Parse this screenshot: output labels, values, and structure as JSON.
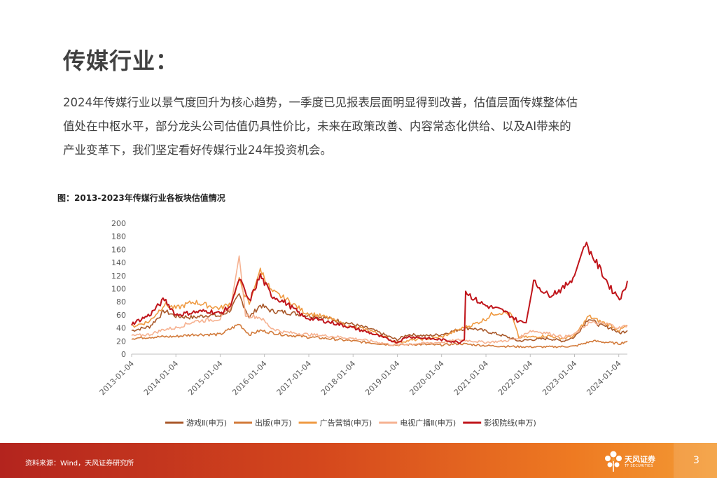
{
  "page": {
    "title": "传媒行业：",
    "paragraph": [
      "2024年传媒行业以景气度回升为核心趋势，一季度已见报表层面明显得到改善，估值层面传媒整体估",
      "值处在中枢水平，部分龙头公司估值仍具性价比，未来在政策改善、内容常态化供给、以及AI带来的",
      "产业变革下，我们坚定看好传媒行业24年投资机会。"
    ],
    "figure_title": "图：2013-2023年传媒行业各板块估值情况",
    "source": "资料来源：Wind，天风证券研究所",
    "logo_text": "天风证券",
    "logo_subtext": "TF SECURITIES",
    "page_number": "3"
  },
  "colors": {
    "footer_start": "#b3241e",
    "footer_end": "#f39b35"
  },
  "chart_data": {
    "type": "line",
    "title": "图：2013-2023年传媒行业各板块估值情况",
    "xlabel": "",
    "ylabel": "",
    "ylim": [
      0,
      200
    ],
    "yticks": [
      0,
      20,
      40,
      60,
      80,
      100,
      120,
      140,
      160,
      180,
      200
    ],
    "xlim": [
      "2013-01-04",
      "2024-03-15"
    ],
    "xticks": [
      "2013-01-04",
      "2014-01-04",
      "2015-01-04",
      "2016-01-04",
      "2017-01-04",
      "2018-01-04",
      "2019-01-04",
      "2020-01-04",
      "2021-01-04",
      "2022-01-04",
      "2023-01-04",
      "2024-01-04"
    ],
    "grid": false,
    "legend_position": "bottom",
    "series": [
      {
        "name": "游戏Ⅱ(申万)",
        "color": "#a8582a",
        "points": [
          [
            "2013-01-04",
            36
          ],
          [
            "2013-06-01",
            42
          ],
          [
            "2013-10-01",
            66
          ],
          [
            "2014-01-04",
            58
          ],
          [
            "2014-06-01",
            56
          ],
          [
            "2014-10-01",
            60
          ],
          [
            "2015-01-04",
            58
          ],
          [
            "2015-04-01",
            68
          ],
          [
            "2015-06-10",
            90
          ],
          [
            "2015-09-01",
            56
          ],
          [
            "2015-12-01",
            75
          ],
          [
            "2016-03-01",
            66
          ],
          [
            "2016-07-01",
            64
          ],
          [
            "2016-12-01",
            60
          ],
          [
            "2017-06-01",
            55
          ],
          [
            "2017-12-01",
            47
          ],
          [
            "2018-06-01",
            38
          ],
          [
            "2018-12-01",
            24
          ],
          [
            "2019-01-04",
            22
          ],
          [
            "2019-04-01",
            30
          ],
          [
            "2019-09-01",
            28
          ],
          [
            "2020-01-04",
            30
          ],
          [
            "2020-06-01",
            38
          ],
          [
            "2020-09-01",
            40
          ],
          [
            "2021-01-04",
            35
          ],
          [
            "2021-06-01",
            28
          ],
          [
            "2021-10-01",
            20
          ],
          [
            "2022-01-04",
            22
          ],
          [
            "2022-06-01",
            24
          ],
          [
            "2022-10-01",
            20
          ],
          [
            "2023-01-04",
            26
          ],
          [
            "2023-05-01",
            55
          ],
          [
            "2023-08-01",
            44
          ],
          [
            "2023-11-01",
            40
          ],
          [
            "2024-01-10",
            32
          ],
          [
            "2024-03-15",
            36
          ]
        ]
      },
      {
        "name": "出版(申万)",
        "color": "#d27a3a",
        "points": [
          [
            "2013-01-04",
            24
          ],
          [
            "2013-06-01",
            26
          ],
          [
            "2014-01-04",
            27
          ],
          [
            "2014-06-01",
            30
          ],
          [
            "2015-01-04",
            30
          ],
          [
            "2015-06-10",
            46
          ],
          [
            "2015-09-01",
            30
          ],
          [
            "2015-12-01",
            36
          ],
          [
            "2016-06-01",
            30
          ],
          [
            "2017-01-04",
            26
          ],
          [
            "2017-06-01",
            24
          ],
          [
            "2018-01-04",
            20
          ],
          [
            "2018-10-01",
            15
          ],
          [
            "2019-01-04",
            14
          ],
          [
            "2019-06-01",
            15
          ],
          [
            "2020-01-04",
            14
          ],
          [
            "2020-06-01",
            16
          ],
          [
            "2021-01-04",
            13
          ],
          [
            "2021-06-01",
            12
          ],
          [
            "2022-01-04",
            11
          ],
          [
            "2022-06-01",
            11
          ],
          [
            "2023-01-04",
            12
          ],
          [
            "2023-06-01",
            20
          ],
          [
            "2023-10-01",
            18
          ],
          [
            "2024-01-10",
            16
          ],
          [
            "2024-03-15",
            20
          ]
        ]
      },
      {
        "name": "广告营销(申万)",
        "color": "#ef9a42",
        "points": [
          [
            "2013-01-04",
            42
          ],
          [
            "2013-06-01",
            50
          ],
          [
            "2013-10-01",
            76
          ],
          [
            "2014-01-04",
            70
          ],
          [
            "2014-06-01",
            80
          ],
          [
            "2014-10-01",
            74
          ],
          [
            "2015-01-04",
            70
          ],
          [
            "2015-04-01",
            78
          ],
          [
            "2015-06-10",
            112
          ],
          [
            "2015-09-01",
            76
          ],
          [
            "2015-12-01",
            130
          ],
          [
            "2016-03-01",
            96
          ],
          [
            "2016-07-01",
            84
          ],
          [
            "2016-12-01",
            64
          ],
          [
            "2017-06-01",
            56
          ],
          [
            "2017-12-01",
            42
          ],
          [
            "2018-06-01",
            36
          ],
          [
            "2018-12-01",
            20
          ],
          [
            "2019-01-04",
            18
          ],
          [
            "2019-06-01",
            22
          ],
          [
            "2020-01-04",
            26
          ],
          [
            "2020-06-01",
            38
          ],
          [
            "2020-10-01",
            46
          ],
          [
            "2021-01-04",
            54
          ],
          [
            "2021-03-01",
            62
          ],
          [
            "2021-06-01",
            64
          ],
          [
            "2021-08-01",
            60
          ],
          [
            "2021-10-01",
            26
          ],
          [
            "2022-01-04",
            26
          ],
          [
            "2022-06-01",
            28
          ],
          [
            "2022-10-01",
            24
          ],
          [
            "2023-01-04",
            28
          ],
          [
            "2023-05-01",
            58
          ],
          [
            "2023-08-01",
            50
          ],
          [
            "2023-11-01",
            44
          ],
          [
            "2024-01-10",
            36
          ],
          [
            "2024-03-15",
            44
          ]
        ]
      },
      {
        "name": "电视广播Ⅱ(申万)",
        "color": "#f6b291",
        "points": [
          [
            "2013-01-04",
            28
          ],
          [
            "2013-06-01",
            30
          ],
          [
            "2013-10-01",
            38
          ],
          [
            "2014-01-04",
            40
          ],
          [
            "2014-06-01",
            50
          ],
          [
            "2015-01-04",
            54
          ],
          [
            "2015-04-01",
            72
          ],
          [
            "2015-06-10",
            150
          ],
          [
            "2015-08-01",
            60
          ],
          [
            "2015-12-01",
            56
          ],
          [
            "2016-03-01",
            40
          ],
          [
            "2016-06-01",
            34
          ],
          [
            "2017-01-04",
            30
          ],
          [
            "2017-06-01",
            28
          ],
          [
            "2018-01-04",
            24
          ],
          [
            "2018-06-01",
            20
          ],
          [
            "2018-12-01",
            14
          ],
          [
            "2019-01-04",
            14
          ],
          [
            "2019-06-01",
            16
          ],
          [
            "2020-01-04",
            18
          ],
          [
            "2020-06-01",
            22
          ],
          [
            "2021-01-04",
            18
          ],
          [
            "2021-06-01",
            20
          ],
          [
            "2021-10-01",
            24
          ],
          [
            "2022-01-04",
            36
          ],
          [
            "2022-06-01",
            32
          ],
          [
            "2022-10-01",
            26
          ],
          [
            "2023-01-04",
            30
          ],
          [
            "2023-05-01",
            48
          ],
          [
            "2023-10-01",
            46
          ],
          [
            "2024-01-10",
            40
          ],
          [
            "2024-03-15",
            44
          ]
        ]
      },
      {
        "name": "影视院线(申万)",
        "color": "#c0151b",
        "points": [
          [
            "2013-01-04",
            46
          ],
          [
            "2013-06-01",
            60
          ],
          [
            "2013-10-01",
            84
          ],
          [
            "2014-01-04",
            60
          ],
          [
            "2014-06-01",
            64
          ],
          [
            "2014-10-01",
            66
          ],
          [
            "2015-01-04",
            62
          ],
          [
            "2015-04-01",
            74
          ],
          [
            "2015-06-10",
            116
          ],
          [
            "2015-09-01",
            80
          ],
          [
            "2015-12-01",
            120
          ],
          [
            "2016-03-01",
            90
          ],
          [
            "2016-07-01",
            78
          ],
          [
            "2016-12-01",
            56
          ],
          [
            "2017-06-01",
            50
          ],
          [
            "2017-12-01",
            42
          ],
          [
            "2018-06-01",
            32
          ],
          [
            "2018-12-01",
            20
          ],
          [
            "2019-01-04",
            18
          ],
          [
            "2019-04-01",
            27
          ],
          [
            "2019-09-01",
            24
          ],
          [
            "2020-01-04",
            22
          ],
          [
            "2020-06-01",
            18
          ],
          [
            "2020-07-10",
            22
          ],
          [
            "2020-07-20",
            96
          ],
          [
            "2020-10-01",
            84
          ],
          [
            "2021-01-04",
            74
          ],
          [
            "2021-06-01",
            66
          ],
          [
            "2021-08-01",
            58
          ],
          [
            "2021-10-01",
            50
          ],
          [
            "2021-12-01",
            48
          ],
          [
            "2022-02-01",
            110
          ],
          [
            "2022-06-01",
            90
          ],
          [
            "2022-10-01",
            100
          ],
          [
            "2023-01-04",
            120
          ],
          [
            "2023-04-01",
            170
          ],
          [
            "2023-06-01",
            150
          ],
          [
            "2023-09-01",
            120
          ],
          [
            "2023-11-01",
            100
          ],
          [
            "2024-01-10",
            86
          ],
          [
            "2024-02-15",
            95
          ],
          [
            "2024-03-15",
            112
          ]
        ]
      }
    ]
  }
}
